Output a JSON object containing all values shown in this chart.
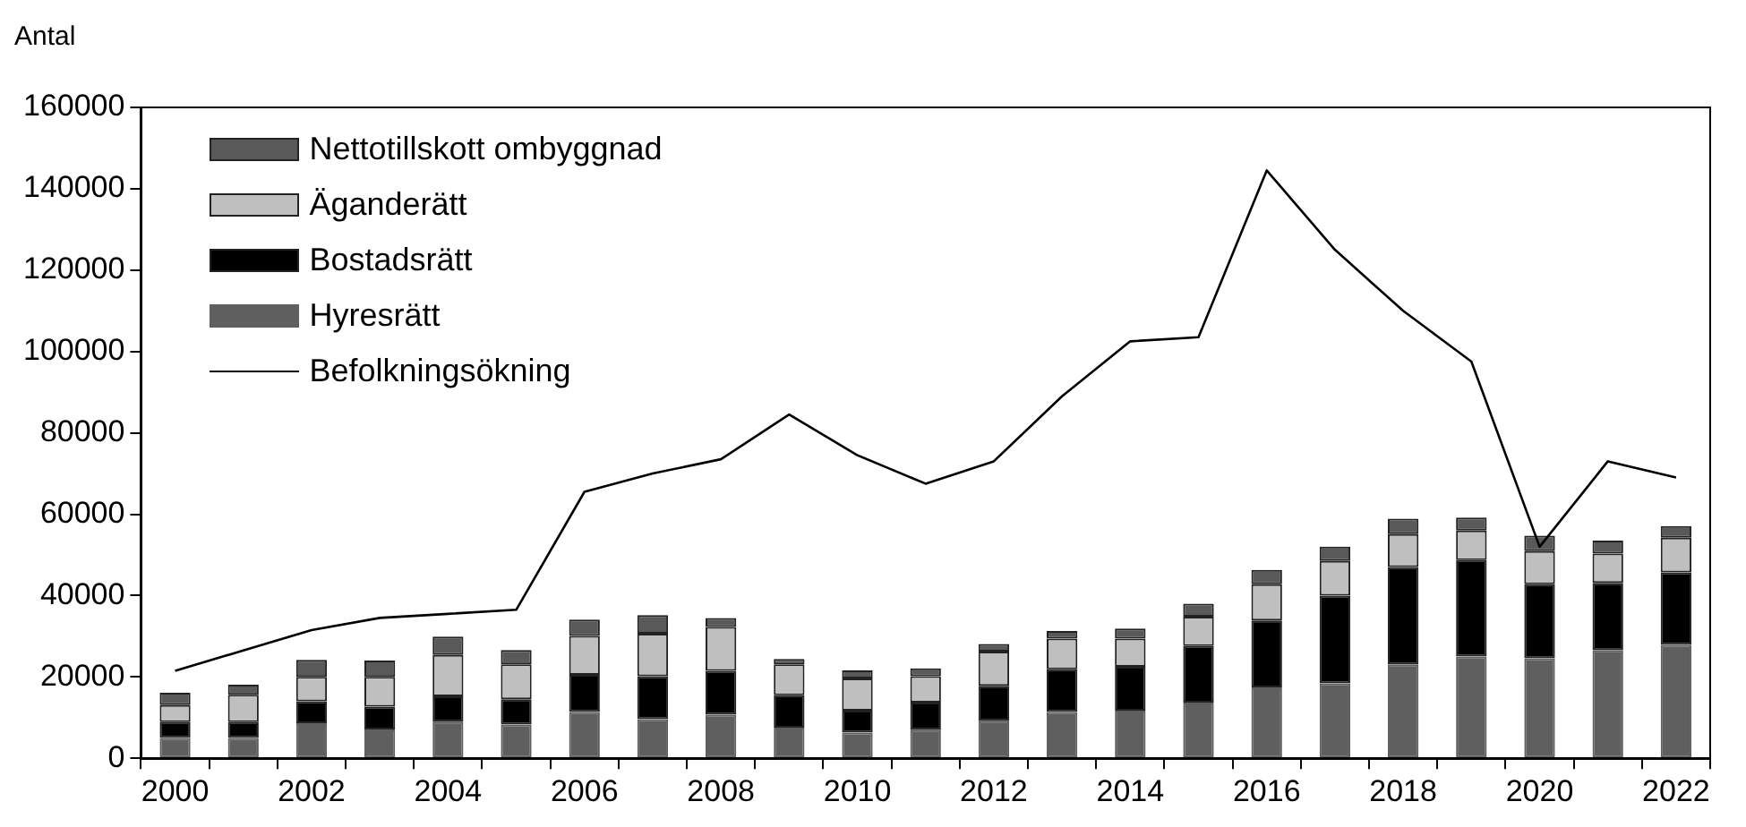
{
  "chart_data": {
    "type": "bar",
    "stacked": true,
    "ylabel": "Antal",
    "categories": [
      "2000",
      null,
      "2002",
      null,
      "2004",
      null,
      "2006",
      null,
      "2008",
      null,
      "2010",
      null,
      "2012",
      null,
      "2014",
      null,
      "2016",
      null,
      "2018",
      null,
      "2020",
      null,
      "2022"
    ],
    "series": [
      {
        "name": "Hyresrätt",
        "color": "#5f5f5f",
        "values": [
          5000,
          5000,
          8600,
          7100,
          8900,
          8300,
          11400,
          9600,
          10700,
          7500,
          6300,
          6900,
          9100,
          11400,
          11700,
          13700,
          17400,
          18400,
          23100,
          25000,
          24600,
          26600,
          27900
        ]
      },
      {
        "name": "Bostadsrätt",
        "color": "#000000",
        "values": [
          3900,
          3900,
          5400,
          5600,
          6300,
          6200,
          9100,
          10600,
          10800,
          8000,
          5400,
          6800,
          8700,
          10500,
          10800,
          13900,
          16500,
          21600,
          23900,
          23700,
          18200,
          16500,
          17800
        ]
      },
      {
        "name": "Äganderätt",
        "color": "#bfbfbf",
        "values": [
          4200,
          6700,
          6000,
          7300,
          10200,
          8600,
          9600,
          10400,
          10800,
          7600,
          7900,
          6500,
          8400,
          7500,
          6900,
          7200,
          8900,
          8500,
          8100,
          7300,
          8100,
          7200,
          8500
        ]
      },
      {
        "name": "Nettotillskott ombyggnad",
        "color": "#595959",
        "values": [
          3000,
          2500,
          4200,
          4000,
          4500,
          3500,
          4000,
          4600,
          2200,
          1300,
          2000,
          1900,
          1900,
          1900,
          2500,
          3200,
          3500,
          3500,
          3800,
          3200,
          3800,
          3200,
          2900
        ]
      },
      {
        "name": "Befolkningsökning",
        "type": "line",
        "color": "#000000",
        "values": [
          21500,
          26500,
          31500,
          34500,
          35500,
          36500,
          65500,
          70000,
          73500,
          84500,
          74500,
          67500,
          73000,
          89000,
          102500,
          103500,
          144500,
          125000,
          110000,
          97500,
          52000,
          73000,
          69000
        ]
      }
    ],
    "ylim": [
      0,
      160000
    ],
    "yticks": [
      0,
      20000,
      40000,
      60000,
      80000,
      100000,
      120000,
      140000,
      160000
    ],
    "grid": false,
    "legend": "top left",
    "marker": "none",
    "line_style": "solid"
  }
}
